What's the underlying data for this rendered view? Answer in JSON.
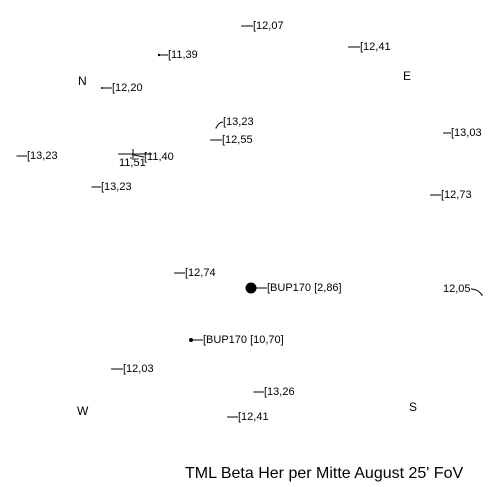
{
  "title": "TML Beta Her per Mitte August 25' FoV",
  "directions": [
    "N",
    "E",
    "W",
    "S"
  ],
  "stars": [
    {
      "label": "[12,07"
    },
    {
      "label": "[11,39"
    },
    {
      "label": "[12,41"
    },
    {
      "label": "[12,20"
    },
    {
      "label": "[13,23"
    },
    {
      "label": "[12,55"
    },
    {
      "label": "[13,03"
    },
    {
      "label": "[13,23"
    },
    {
      "label": "11,51"
    },
    {
      "label": "[11,40"
    },
    {
      "label": "[13,23"
    },
    {
      "label": "[12,73"
    },
    {
      "label": "[12,74"
    },
    {
      "label": "[BUP170 [2,86]"
    },
    {
      "label": "12,05"
    },
    {
      "label": "[BUP170 [10,70]"
    },
    {
      "label": "[12,03"
    },
    {
      "label": "[13,26"
    },
    {
      "label": "[12,41"
    }
  ]
}
